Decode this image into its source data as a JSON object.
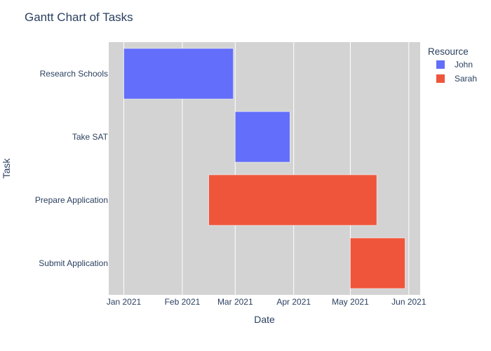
{
  "chart_data": {
    "type": "gantt",
    "title": "Gantt Chart of Tasks",
    "xlabel": "Date",
    "ylabel": "Task",
    "x_ticks": [
      {
        "date": "2021-01-01",
        "label": "Jan 2021"
      },
      {
        "date": "2021-02-01",
        "label": "Feb 2021"
      },
      {
        "date": "2021-03-01",
        "label": "Mar 2021"
      },
      {
        "date": "2021-04-01",
        "label": "Apr 2021"
      },
      {
        "date": "2021-05-01",
        "label": "May 2021"
      },
      {
        "date": "2021-06-01",
        "label": "Jun 2021"
      }
    ],
    "xlim": [
      "2020-12-24",
      "2021-06-07"
    ],
    "categories": [
      "Research Schools",
      "Take SAT",
      "Prepare Application",
      "Submit Application"
    ],
    "tasks": [
      {
        "task": "Research Schools",
        "start": "2021-01-01",
        "finish": "2021-02-28",
        "resource": "John"
      },
      {
        "task": "Take SAT",
        "start": "2021-03-01",
        "finish": "2021-03-30",
        "resource": "John"
      },
      {
        "task": "Prepare Application",
        "start": "2021-02-15",
        "finish": "2021-05-15",
        "resource": "Sarah"
      },
      {
        "task": "Submit Application",
        "start": "2021-05-01",
        "finish": "2021-05-30",
        "resource": "Sarah"
      }
    ],
    "legend": {
      "title": "Resource",
      "placement": "top-right",
      "entries": [
        {
          "name": "John",
          "color": "#636efa"
        },
        {
          "name": "Sarah",
          "color": "#ef553b"
        }
      ]
    },
    "plot_background": "#d3d3d3",
    "grid": true
  }
}
